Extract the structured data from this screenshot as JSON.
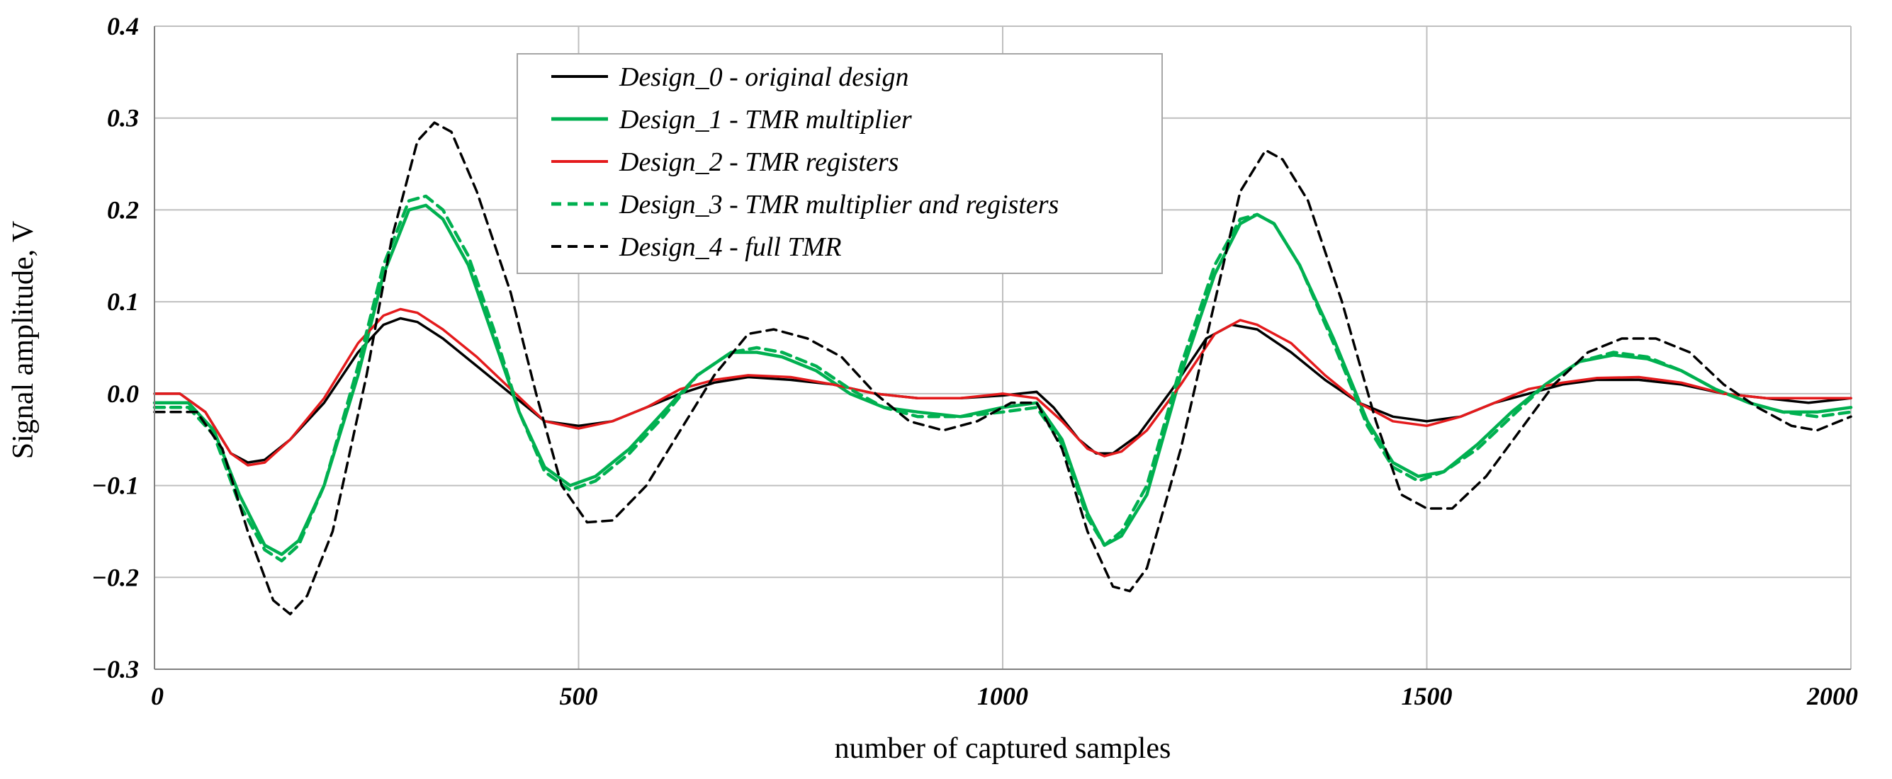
{
  "chart_data": {
    "type": "line",
    "title": "",
    "xlabel": "number of captured samples",
    "ylabel": "Signal amplitude, V",
    "xlim": [
      0,
      2000
    ],
    "ylim": [
      -0.3,
      0.4
    ],
    "xticks": [
      0,
      500,
      1000,
      1500,
      2000
    ],
    "xtick_labels": [
      "0",
      "500",
      "1000",
      "1500",
      "2000"
    ],
    "yticks": [
      -0.3,
      -0.2,
      -0.1,
      0.0,
      0.1,
      0.2,
      0.3,
      0.4
    ],
    "ytick_labels": [
      "−0.3",
      "−0.2",
      "−0.1",
      "0.0",
      "0.1",
      "0.2",
      "0.3",
      "0.4"
    ],
    "grid": true,
    "legend_position": "top-center",
    "series": [
      {
        "name": "Design_0 - original design",
        "color": "#000000",
        "dash": "solid",
        "points": [
          [
            0,
            0.0
          ],
          [
            30,
            0.0
          ],
          [
            60,
            -0.02
          ],
          [
            90,
            -0.065
          ],
          [
            110,
            -0.075
          ],
          [
            130,
            -0.072
          ],
          [
            160,
            -0.05
          ],
          [
            200,
            -0.01
          ],
          [
            240,
            0.045
          ],
          [
            270,
            0.075
          ],
          [
            290,
            0.082
          ],
          [
            310,
            0.078
          ],
          [
            340,
            0.06
          ],
          [
            380,
            0.03
          ],
          [
            420,
            0.0
          ],
          [
            460,
            -0.03
          ],
          [
            500,
            -0.035
          ],
          [
            540,
            -0.03
          ],
          [
            580,
            -0.015
          ],
          [
            620,
            0.0
          ],
          [
            660,
            0.012
          ],
          [
            700,
            0.018
          ],
          [
            750,
            0.015
          ],
          [
            800,
            0.01
          ],
          [
            850,
            0.0
          ],
          [
            900,
            -0.005
          ],
          [
            950,
            -0.005
          ],
          [
            1000,
            -0.002
          ],
          [
            1040,
            0.002
          ],
          [
            1060,
            -0.015
          ],
          [
            1090,
            -0.05
          ],
          [
            1110,
            -0.065
          ],
          [
            1130,
            -0.065
          ],
          [
            1160,
            -0.045
          ],
          [
            1200,
            0.005
          ],
          [
            1240,
            0.06
          ],
          [
            1270,
            0.075
          ],
          [
            1300,
            0.07
          ],
          [
            1340,
            0.045
          ],
          [
            1380,
            0.015
          ],
          [
            1420,
            -0.01
          ],
          [
            1460,
            -0.025
          ],
          [
            1500,
            -0.03
          ],
          [
            1540,
            -0.025
          ],
          [
            1580,
            -0.01
          ],
          [
            1620,
            0.0
          ],
          [
            1660,
            0.01
          ],
          [
            1700,
            0.015
          ],
          [
            1750,
            0.015
          ],
          [
            1800,
            0.01
          ],
          [
            1850,
            0.0
          ],
          [
            1900,
            -0.005
          ],
          [
            1950,
            -0.01
          ],
          [
            2000,
            -0.005
          ]
        ]
      },
      {
        "name": "Design_1 - TMR multiplier",
        "color": "#00b050",
        "dash": "solid",
        "points": [
          [
            0,
            -0.01
          ],
          [
            40,
            -0.01
          ],
          [
            70,
            -0.04
          ],
          [
            100,
            -0.11
          ],
          [
            130,
            -0.165
          ],
          [
            150,
            -0.175
          ],
          [
            170,
            -0.16
          ],
          [
            200,
            -0.1
          ],
          [
            240,
            0.02
          ],
          [
            270,
            0.13
          ],
          [
            300,
            0.2
          ],
          [
            320,
            0.205
          ],
          [
            340,
            0.19
          ],
          [
            370,
            0.14
          ],
          [
            400,
            0.06
          ],
          [
            430,
            -0.02
          ],
          [
            460,
            -0.08
          ],
          [
            490,
            -0.1
          ],
          [
            520,
            -0.09
          ],
          [
            560,
            -0.06
          ],
          [
            600,
            -0.02
          ],
          [
            640,
            0.02
          ],
          [
            680,
            0.045
          ],
          [
            710,
            0.045
          ],
          [
            740,
            0.04
          ],
          [
            780,
            0.025
          ],
          [
            820,
            0.0
          ],
          [
            860,
            -0.015
          ],
          [
            900,
            -0.02
          ],
          [
            950,
            -0.025
          ],
          [
            1000,
            -0.015
          ],
          [
            1040,
            -0.01
          ],
          [
            1070,
            -0.05
          ],
          [
            1100,
            -0.13
          ],
          [
            1120,
            -0.165
          ],
          [
            1140,
            -0.155
          ],
          [
            1170,
            -0.11
          ],
          [
            1210,
            0.02
          ],
          [
            1250,
            0.13
          ],
          [
            1280,
            0.185
          ],
          [
            1300,
            0.195
          ],
          [
            1320,
            0.185
          ],
          [
            1350,
            0.14
          ],
          [
            1390,
            0.06
          ],
          [
            1430,
            -0.03
          ],
          [
            1460,
            -0.075
          ],
          [
            1490,
            -0.09
          ],
          [
            1520,
            -0.085
          ],
          [
            1560,
            -0.055
          ],
          [
            1600,
            -0.02
          ],
          [
            1640,
            0.01
          ],
          [
            1680,
            0.035
          ],
          [
            1720,
            0.042
          ],
          [
            1760,
            0.038
          ],
          [
            1800,
            0.025
          ],
          [
            1840,
            0.005
          ],
          [
            1880,
            -0.01
          ],
          [
            1920,
            -0.02
          ],
          [
            1960,
            -0.02
          ],
          [
            2000,
            -0.015
          ]
        ]
      },
      {
        "name": "Design_2 - TMR registers",
        "color": "#e41a1c",
        "dash": "solid",
        "points": [
          [
            0,
            0.0
          ],
          [
            30,
            0.0
          ],
          [
            60,
            -0.02
          ],
          [
            90,
            -0.065
          ],
          [
            110,
            -0.078
          ],
          [
            130,
            -0.075
          ],
          [
            160,
            -0.05
          ],
          [
            200,
            -0.005
          ],
          [
            240,
            0.055
          ],
          [
            270,
            0.085
          ],
          [
            290,
            0.092
          ],
          [
            310,
            0.088
          ],
          [
            340,
            0.07
          ],
          [
            380,
            0.04
          ],
          [
            420,
            0.005
          ],
          [
            460,
            -0.03
          ],
          [
            500,
            -0.038
          ],
          [
            540,
            -0.03
          ],
          [
            580,
            -0.015
          ],
          [
            620,
            0.005
          ],
          [
            660,
            0.015
          ],
          [
            700,
            0.02
          ],
          [
            750,
            0.018
          ],
          [
            800,
            0.01
          ],
          [
            850,
            0.0
          ],
          [
            900,
            -0.005
          ],
          [
            950,
            -0.005
          ],
          [
            1000,
            0.0
          ],
          [
            1040,
            -0.005
          ],
          [
            1070,
            -0.03
          ],
          [
            1100,
            -0.06
          ],
          [
            1120,
            -0.068
          ],
          [
            1140,
            -0.063
          ],
          [
            1170,
            -0.04
          ],
          [
            1210,
            0.01
          ],
          [
            1250,
            0.065
          ],
          [
            1280,
            0.08
          ],
          [
            1300,
            0.075
          ],
          [
            1340,
            0.055
          ],
          [
            1380,
            0.02
          ],
          [
            1420,
            -0.01
          ],
          [
            1460,
            -0.03
          ],
          [
            1500,
            -0.035
          ],
          [
            1540,
            -0.025
          ],
          [
            1580,
            -0.01
          ],
          [
            1620,
            0.005
          ],
          [
            1660,
            0.012
          ],
          [
            1700,
            0.017
          ],
          [
            1750,
            0.018
          ],
          [
            1800,
            0.012
          ],
          [
            1850,
            0.0
          ],
          [
            1900,
            -0.005
          ],
          [
            1950,
            -0.005
          ],
          [
            2000,
            -0.005
          ]
        ]
      },
      {
        "name": "Design_3 - TMR multiplier and registers",
        "color": "#00b050",
        "dash": "dashed",
        "points": [
          [
            0,
            -0.015
          ],
          [
            40,
            -0.015
          ],
          [
            70,
            -0.045
          ],
          [
            100,
            -0.12
          ],
          [
            130,
            -0.17
          ],
          [
            150,
            -0.182
          ],
          [
            170,
            -0.165
          ],
          [
            200,
            -0.1
          ],
          [
            240,
            0.03
          ],
          [
            270,
            0.14
          ],
          [
            300,
            0.21
          ],
          [
            320,
            0.215
          ],
          [
            340,
            0.2
          ],
          [
            370,
            0.15
          ],
          [
            400,
            0.07
          ],
          [
            430,
            -0.02
          ],
          [
            460,
            -0.085
          ],
          [
            490,
            -0.105
          ],
          [
            520,
            -0.095
          ],
          [
            560,
            -0.065
          ],
          [
            600,
            -0.025
          ],
          [
            640,
            0.02
          ],
          [
            680,
            0.045
          ],
          [
            710,
            0.05
          ],
          [
            740,
            0.045
          ],
          [
            780,
            0.03
          ],
          [
            820,
            0.005
          ],
          [
            860,
            -0.015
          ],
          [
            900,
            -0.025
          ],
          [
            950,
            -0.025
          ],
          [
            1000,
            -0.02
          ],
          [
            1040,
            -0.015
          ],
          [
            1070,
            -0.055
          ],
          [
            1100,
            -0.135
          ],
          [
            1120,
            -0.165
          ],
          [
            1140,
            -0.15
          ],
          [
            1170,
            -0.1
          ],
          [
            1210,
            0.03
          ],
          [
            1250,
            0.14
          ],
          [
            1280,
            0.19
          ],
          [
            1300,
            0.195
          ],
          [
            1320,
            0.185
          ],
          [
            1350,
            0.14
          ],
          [
            1390,
            0.055
          ],
          [
            1430,
            -0.035
          ],
          [
            1460,
            -0.08
          ],
          [
            1490,
            -0.095
          ],
          [
            1520,
            -0.085
          ],
          [
            1560,
            -0.06
          ],
          [
            1600,
            -0.025
          ],
          [
            1640,
            0.01
          ],
          [
            1680,
            0.035
          ],
          [
            1720,
            0.045
          ],
          [
            1760,
            0.04
          ],
          [
            1800,
            0.025
          ],
          [
            1840,
            0.005
          ],
          [
            1880,
            -0.01
          ],
          [
            1920,
            -0.02
          ],
          [
            1960,
            -0.025
          ],
          [
            2000,
            -0.02
          ]
        ]
      },
      {
        "name": "Design_4 - full TMR",
        "color": "#000000",
        "dash": "dashed",
        "points": [
          [
            0,
            -0.02
          ],
          [
            50,
            -0.02
          ],
          [
            80,
            -0.06
          ],
          [
            110,
            -0.15
          ],
          [
            140,
            -0.225
          ],
          [
            160,
            -0.24
          ],
          [
            180,
            -0.22
          ],
          [
            210,
            -0.15
          ],
          [
            250,
            0.02
          ],
          [
            280,
            0.17
          ],
          [
            310,
            0.275
          ],
          [
            330,
            0.295
          ],
          [
            350,
            0.285
          ],
          [
            380,
            0.22
          ],
          [
            420,
            0.11
          ],
          [
            450,
            0.0
          ],
          [
            480,
            -0.1
          ],
          [
            510,
            -0.14
          ],
          [
            540,
            -0.138
          ],
          [
            580,
            -0.1
          ],
          [
            620,
            -0.04
          ],
          [
            660,
            0.02
          ],
          [
            700,
            0.065
          ],
          [
            730,
            0.07
          ],
          [
            770,
            0.06
          ],
          [
            810,
            0.04
          ],
          [
            850,
            0.0
          ],
          [
            890,
            -0.03
          ],
          [
            930,
            -0.04
          ],
          [
            970,
            -0.03
          ],
          [
            1010,
            -0.01
          ],
          [
            1040,
            -0.01
          ],
          [
            1070,
            -0.06
          ],
          [
            1100,
            -0.15
          ],
          [
            1130,
            -0.21
          ],
          [
            1150,
            -0.215
          ],
          [
            1170,
            -0.19
          ],
          [
            1210,
            -0.06
          ],
          [
            1250,
            0.1
          ],
          [
            1280,
            0.22
          ],
          [
            1310,
            0.265
          ],
          [
            1330,
            0.255
          ],
          [
            1360,
            0.21
          ],
          [
            1400,
            0.1
          ],
          [
            1440,
            -0.03
          ],
          [
            1470,
            -0.11
          ],
          [
            1500,
            -0.125
          ],
          [
            1530,
            -0.125
          ],
          [
            1570,
            -0.09
          ],
          [
            1610,
            -0.04
          ],
          [
            1650,
            0.01
          ],
          [
            1690,
            0.045
          ],
          [
            1730,
            0.06
          ],
          [
            1770,
            0.06
          ],
          [
            1810,
            0.045
          ],
          [
            1850,
            0.01
          ],
          [
            1890,
            -0.015
          ],
          [
            1930,
            -0.035
          ],
          [
            1960,
            -0.04
          ],
          [
            2000,
            -0.025
          ]
        ]
      }
    ]
  }
}
